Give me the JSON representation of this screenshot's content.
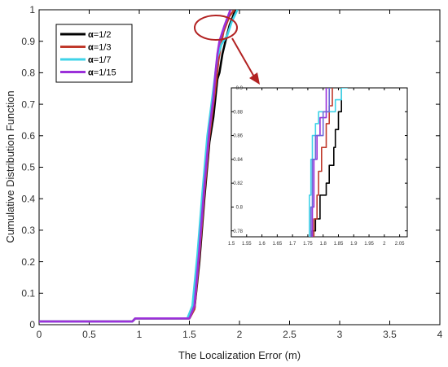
{
  "chart_data": [
    {
      "type": "line",
      "title": "",
      "xlabel": "The Localization Error (m)",
      "ylabel": "Cumulative Distribution Function",
      "xlim": [
        0,
        4
      ],
      "ylim": [
        0,
        1
      ],
      "x_ticks": [
        "0",
        "0.5",
        "1",
        "1.5",
        "2",
        "2.5",
        "3",
        "3.5",
        "4"
      ],
      "y_ticks": [
        "0",
        "0.1",
        "0.2",
        "0.3",
        "0.4",
        "0.5",
        "0.6",
        "0.7",
        "0.8",
        "0.9",
        "1"
      ],
      "legend_position": "top-left",
      "grid": false,
      "series": [
        {
          "name": "=1/2",
          "legend_prefix": "α",
          "color": "#000000",
          "points": [
            [
              0,
              0.01
            ],
            [
              0.93,
              0.01
            ],
            [
              0.96,
              0.02
            ],
            [
              1.5,
              0.02
            ],
            [
              1.55,
              0.05
            ],
            [
              1.6,
              0.2
            ],
            [
              1.65,
              0.4
            ],
            [
              1.7,
              0.58
            ],
            [
              1.74,
              0.66
            ],
            [
              1.78,
              0.78
            ],
            [
              1.8,
              0.8
            ],
            [
              1.83,
              0.86
            ],
            [
              1.86,
              0.9
            ],
            [
              1.9,
              0.95
            ],
            [
              1.96,
              1.0
            ]
          ]
        },
        {
          "name": "=1/3",
          "legend_prefix": "α",
          "color": "#c0392b",
          "points": [
            [
              0,
              0.01
            ],
            [
              0.93,
              0.01
            ],
            [
              0.96,
              0.02
            ],
            [
              1.5,
              0.02
            ],
            [
              1.55,
              0.05
            ],
            [
              1.6,
              0.22
            ],
            [
              1.65,
              0.42
            ],
            [
              1.7,
              0.6
            ],
            [
              1.74,
              0.7
            ],
            [
              1.77,
              0.78
            ],
            [
              1.79,
              0.84
            ],
            [
              1.81,
              0.88
            ],
            [
              1.84,
              0.93
            ],
            [
              1.9,
              0.98
            ],
            [
              1.95,
              1.0
            ]
          ]
        },
        {
          "name": "=1/7",
          "legend_prefix": "α",
          "color": "#3fd3e8",
          "points": [
            [
              0,
              0.01
            ],
            [
              0.93,
              0.01
            ],
            [
              0.96,
              0.02
            ],
            [
              1.48,
              0.02
            ],
            [
              1.53,
              0.06
            ],
            [
              1.58,
              0.22
            ],
            [
              1.63,
              0.42
            ],
            [
              1.68,
              0.6
            ],
            [
              1.72,
              0.7
            ],
            [
              1.76,
              0.8
            ],
            [
              1.78,
              0.85
            ],
            [
              1.82,
              0.89
            ],
            [
              1.88,
              0.92
            ],
            [
              1.92,
              0.96
            ],
            [
              1.98,
              1.0
            ]
          ]
        },
        {
          "name": "=1/15",
          "legend_prefix": "α",
          "color": "#9b30d9",
          "points": [
            [
              0,
              0.01
            ],
            [
              0.93,
              0.01
            ],
            [
              0.96,
              0.02
            ],
            [
              1.5,
              0.02
            ],
            [
              1.55,
              0.06
            ],
            [
              1.6,
              0.24
            ],
            [
              1.65,
              0.44
            ],
            [
              1.7,
              0.62
            ],
            [
              1.74,
              0.72
            ],
            [
              1.76,
              0.8
            ],
            [
              1.78,
              0.86
            ],
            [
              1.8,
              0.9
            ],
            [
              1.85,
              0.95
            ],
            [
              1.91,
              1.0
            ]
          ]
        }
      ]
    },
    {
      "type": "line",
      "title": "",
      "xlim": [
        1.5,
        2.075
      ],
      "ylim": [
        0.775,
        0.9
      ],
      "x_ticks": [
        "1.5",
        "1.55",
        "1.6",
        "1.65",
        "1.7",
        "1.75",
        "1.8",
        "1.85",
        "1.9",
        "1.95",
        "2",
        "2.05"
      ],
      "y_ticks": [
        "0.78",
        "0.8",
        "0.82",
        "0.84",
        "0.86",
        "0.88",
        "0.9"
      ],
      "series": [
        {
          "color": "#000000",
          "points": [
            [
              1.765,
              0.775
            ],
            [
              1.765,
              0.78
            ],
            [
              1.775,
              0.78
            ],
            [
              1.775,
              0.79
            ],
            [
              1.79,
              0.79
            ],
            [
              1.79,
              0.81
            ],
            [
              1.81,
              0.81
            ],
            [
              1.81,
              0.82
            ],
            [
              1.82,
              0.82
            ],
            [
              1.82,
              0.835
            ],
            [
              1.835,
              0.835
            ],
            [
              1.835,
              0.85
            ],
            [
              1.84,
              0.85
            ],
            [
              1.84,
              0.865
            ],
            [
              1.85,
              0.865
            ],
            [
              1.85,
              0.88
            ],
            [
              1.86,
              0.88
            ],
            [
              1.86,
              0.9
            ]
          ]
        },
        {
          "color": "#c0392b",
          "points": [
            [
              1.77,
              0.775
            ],
            [
              1.77,
              0.79
            ],
            [
              1.78,
              0.79
            ],
            [
              1.78,
              0.81
            ],
            [
              1.785,
              0.81
            ],
            [
              1.785,
              0.83
            ],
            [
              1.795,
              0.83
            ],
            [
              1.795,
              0.85
            ],
            [
              1.81,
              0.85
            ],
            [
              1.81,
              0.87
            ],
            [
              1.82,
              0.87
            ],
            [
              1.82,
              0.885
            ],
            [
              1.83,
              0.885
            ],
            [
              1.83,
              0.9
            ]
          ]
        },
        {
          "color": "#3fd3e8",
          "points": [
            [
              1.755,
              0.775
            ],
            [
              1.755,
              0.81
            ],
            [
              1.76,
              0.81
            ],
            [
              1.76,
              0.84
            ],
            [
              1.765,
              0.84
            ],
            [
              1.765,
              0.86
            ],
            [
              1.775,
              0.86
            ],
            [
              1.775,
              0.87
            ],
            [
              1.785,
              0.87
            ],
            [
              1.785,
              0.88
            ],
            [
              1.84,
              0.88
            ],
            [
              1.84,
              0.89
            ],
            [
              1.86,
              0.89
            ],
            [
              1.86,
              0.9
            ],
            [
              1.88,
              0.9
            ]
          ]
        },
        {
          "color": "#9b30d9",
          "points": [
            [
              1.765,
              0.775
            ],
            [
              1.765,
              0.8
            ],
            [
              1.77,
              0.8
            ],
            [
              1.77,
              0.84
            ],
            [
              1.78,
              0.84
            ],
            [
              1.78,
              0.86
            ],
            [
              1.79,
              0.86
            ],
            [
              1.79,
              0.875
            ],
            [
              1.81,
              0.875
            ],
            [
              1.81,
              0.9
            ]
          ]
        },
        {
          "color": "#6a6ad8",
          "points": [
            [
              1.76,
              0.775
            ],
            [
              1.76,
              0.8
            ],
            [
              1.765,
              0.8
            ],
            [
              1.765,
              0.84
            ],
            [
              1.775,
              0.84
            ],
            [
              1.775,
              0.86
            ],
            [
              1.8,
              0.86
            ],
            [
              1.8,
              0.88
            ],
            [
              1.82,
              0.88
            ],
            [
              1.82,
              0.9
            ]
          ]
        }
      ]
    }
  ],
  "annotation_color": "#b22222"
}
